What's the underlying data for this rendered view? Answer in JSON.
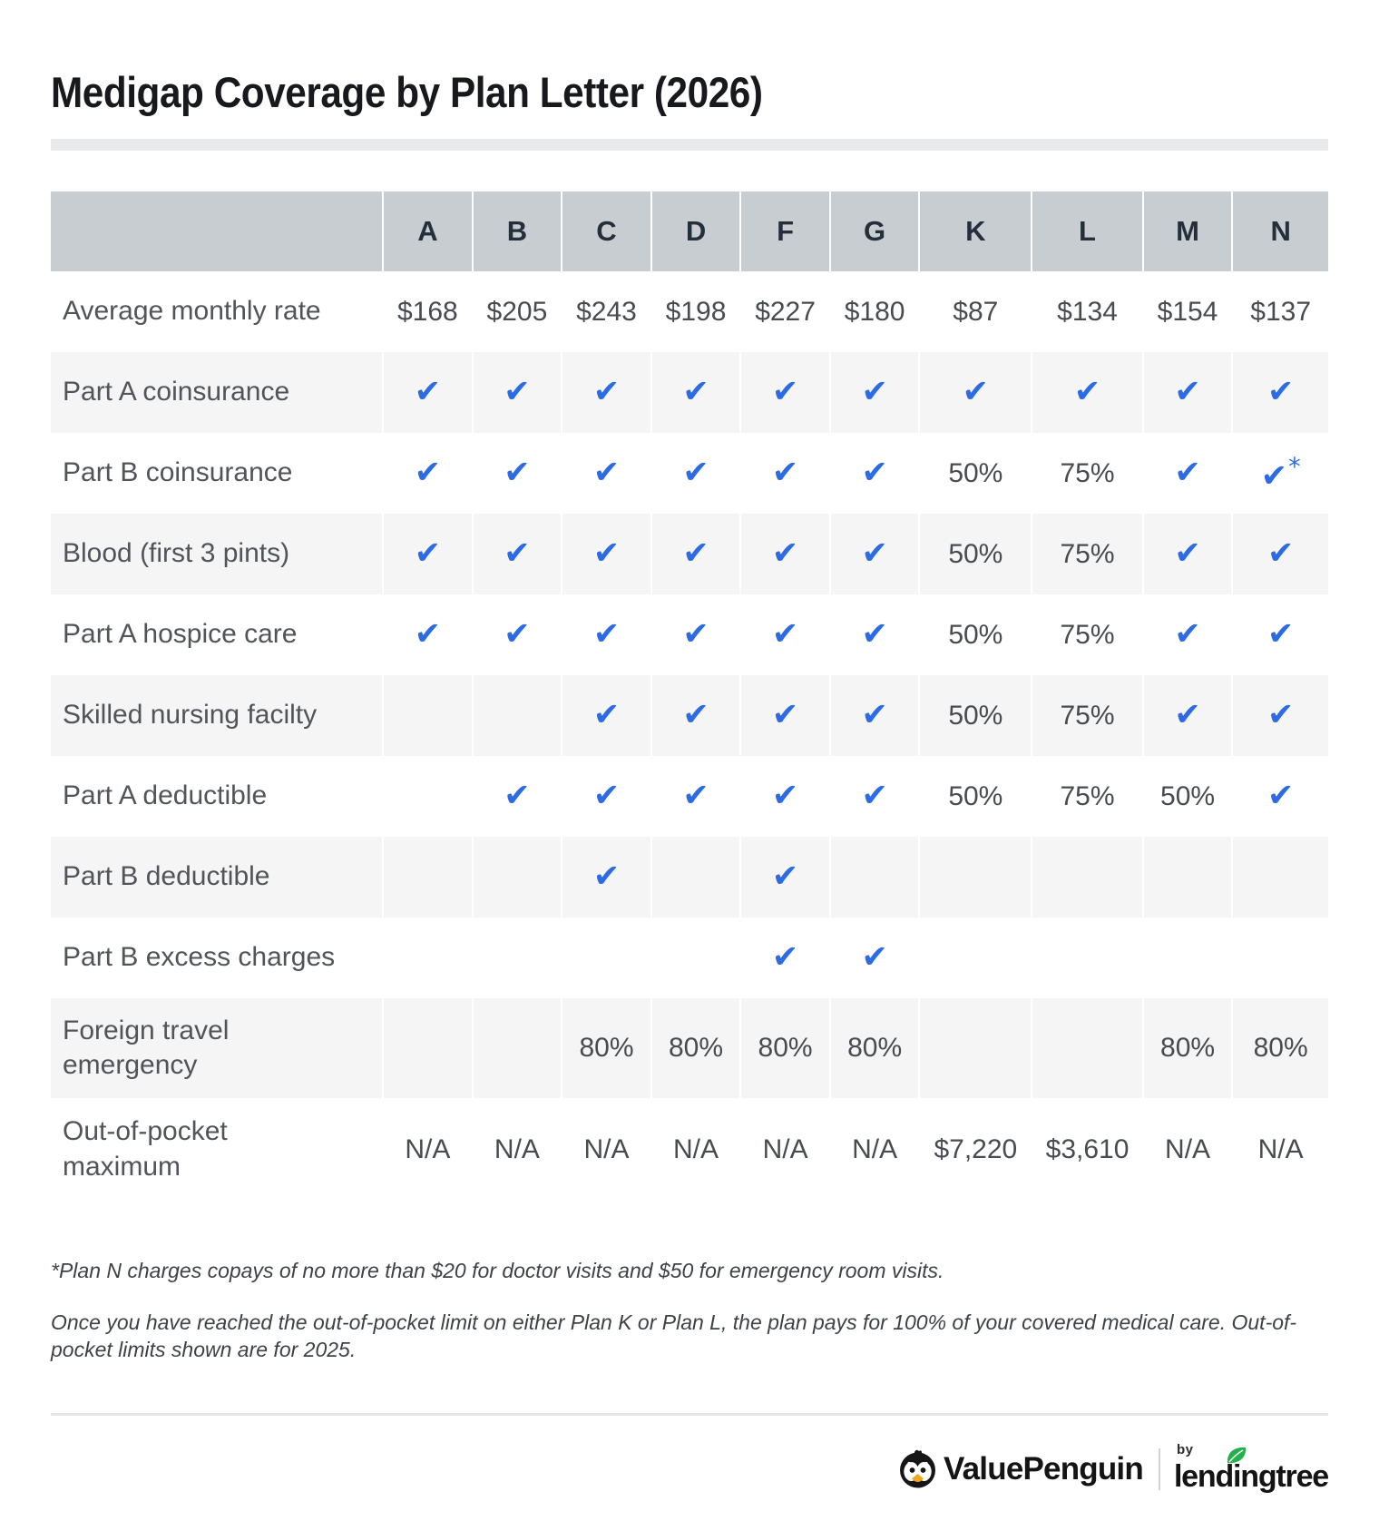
{
  "page": {
    "title": "Medigap Coverage by Plan Letter (2026)",
    "footnotes": [
      "*Plan N charges copays of no more than $20 for doctor visits and $50 for emergency room visits.",
      "Once you have reached the out-of-pocket limit on either Plan K or Plan L, the plan pays for 100% of your covered medical care. Out-of-pocket limits shown are for 2025."
    ]
  },
  "table": {
    "columns": [
      "A",
      "B",
      "C",
      "D",
      "F",
      "G",
      "K",
      "L",
      "M",
      "N"
    ],
    "rows": [
      {
        "label": "Average monthly rate",
        "values": [
          "$168",
          "$205",
          "$243",
          "$198",
          "$227",
          "$180",
          "$87",
          "$134",
          "$154",
          "$137"
        ]
      },
      {
        "label": "Part A coinsurance",
        "values": [
          "check",
          "check",
          "check",
          "check",
          "check",
          "check",
          "check",
          "check",
          "check",
          "check"
        ]
      },
      {
        "label": "Part B coinsurance",
        "values": [
          "check",
          "check",
          "check",
          "check",
          "check",
          "check",
          "50%",
          "75%",
          "check",
          "check*"
        ]
      },
      {
        "label": "Blood (first 3 pints)",
        "values": [
          "check",
          "check",
          "check",
          "check",
          "check",
          "check",
          "50%",
          "75%",
          "check",
          "check"
        ]
      },
      {
        "label": "Part A hospice care",
        "values": [
          "check",
          "check",
          "check",
          "check",
          "check",
          "check",
          "50%",
          "75%",
          "check",
          "check"
        ]
      },
      {
        "label": "Skilled nursing facilty",
        "values": [
          "",
          "",
          "check",
          "check",
          "check",
          "check",
          "50%",
          "75%",
          "check",
          "check"
        ]
      },
      {
        "label": "Part A deductible",
        "values": [
          "",
          "check",
          "check",
          "check",
          "check",
          "check",
          "50%",
          "75%",
          "50%",
          "check"
        ]
      },
      {
        "label": "Part B deductible",
        "values": [
          "",
          "",
          "check",
          "",
          "check",
          "",
          "",
          "",
          "",
          ""
        ]
      },
      {
        "label": "Part B excess charges",
        "values": [
          "",
          "",
          "",
          "",
          "check",
          "check",
          "",
          "",
          "",
          ""
        ]
      },
      {
        "label": "Foreign travel emergency",
        "values": [
          "",
          "",
          "80%",
          "80%",
          "80%",
          "80%",
          "",
          "",
          "80%",
          "80%"
        ]
      },
      {
        "label": "Out-of-pocket maximum",
        "values": [
          "N/A",
          "N/A",
          "N/A",
          "N/A",
          "N/A",
          "N/A",
          "$7,220",
          "$3,610",
          "N/A",
          "N/A"
        ]
      }
    ]
  },
  "brand": {
    "valuepenguin": "ValuePenguin",
    "by": "by",
    "lendingtree": "lendingtree"
  },
  "colors": {
    "check_blue": "#2c6be3",
    "header_bg": "#c7cdd1",
    "header_text": "#242f3b",
    "alt_row_bg": "#f5f5f6",
    "leaf_green": "#22b24c",
    "beak_orange": "#f2a71c"
  }
}
